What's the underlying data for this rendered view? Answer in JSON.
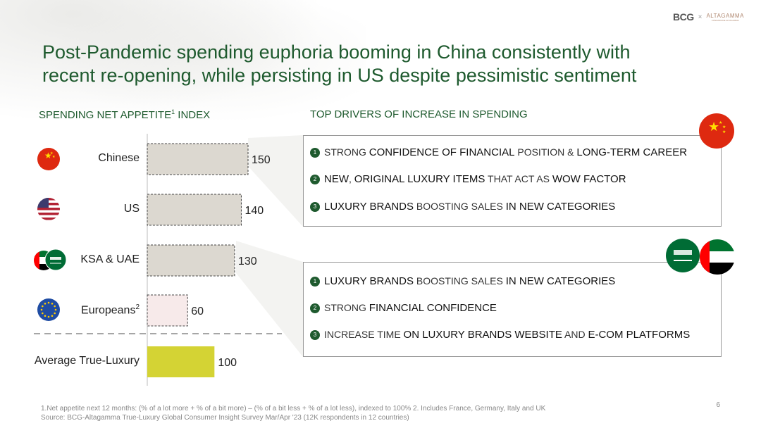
{
  "header": {
    "logo_bcg": "BCG",
    "logo_sep": "×",
    "logo_altagamma": "ALTAGAMMA",
    "logo_altagamma_sub": "FONDAZIONE ALTAGAMMA"
  },
  "title_line1": "Post-Pandemic spending euphoria booming in China consistently with",
  "title_line2": "recent re-opening, while persisting in US despite pessimistic sentiment",
  "left_heading": {
    "pre": "SPENDING NET APPETITE",
    "sup": "1",
    "post": " INDEX"
  },
  "right_heading": "TOP DRIVERS OF INCREASE IN SPENDING",
  "chart_data": {
    "type": "bar",
    "orientation": "horizontal",
    "categories": [
      "Chinese",
      "US",
      "KSA & UAE",
      "Europeans",
      "Average True-Luxury"
    ],
    "category_sups": [
      "",
      "",
      "",
      "2",
      ""
    ],
    "values": [
      150,
      140,
      130,
      60,
      100
    ],
    "value_labels": [
      "150",
      "140",
      "130",
      "60",
      "100"
    ],
    "xlim": [
      0,
      150
    ],
    "bar_colors": [
      "#dcd8d0",
      "#dcd8d0",
      "#dcd8d0",
      "#f7eaea",
      "#d4d334"
    ],
    "title": "",
    "xlabel": "",
    "ylabel": ""
  },
  "flags": [
    "china-flag-icon",
    "usa-flag-icon",
    "ksa-uae-flags-icon",
    "eu-flag-icon"
  ],
  "drivers_top": [
    {
      "n": "1",
      "parts": [
        {
          "t": "STRONG ",
          "b": false
        },
        {
          "t": "CONFIDENCE OF FINANCIAL",
          "b": true
        },
        {
          "t": " POSITION & ",
          "b": false
        },
        {
          "t": "LONG-TERM CAREER",
          "b": true
        }
      ]
    },
    {
      "n": "2",
      "parts": [
        {
          "t": "NEW",
          "b": true
        },
        {
          "t": ", ",
          "b": false
        },
        {
          "t": "ORIGINAL LUXURY ITEMS",
          "b": true
        },
        {
          "t": " THAT ACT AS ",
          "b": false
        },
        {
          "t": "WOW FACTOR",
          "b": true
        }
      ]
    },
    {
      "n": "3",
      "parts": [
        {
          "t": "LUXURY BRANDS",
          "b": true
        },
        {
          "t": " BOOSTING SALES ",
          "b": false
        },
        {
          "t": "IN NEW CATEGORIES",
          "b": true
        }
      ]
    }
  ],
  "drivers_bottom": [
    {
      "n": "1",
      "parts": [
        {
          "t": "LUXURY BRANDS",
          "b": true
        },
        {
          "t": " BOOSTING SALES ",
          "b": false
        },
        {
          "t": "IN NEW CATEGORIES",
          "b": true
        }
      ]
    },
    {
      "n": "2",
      "parts": [
        {
          "t": "STRONG ",
          "b": false
        },
        {
          "t": "FINANCIAL CONFIDENCE",
          "b": true
        }
      ]
    },
    {
      "n": "3",
      "parts": [
        {
          "t": "INCREASE TIME ",
          "b": false
        },
        {
          "t": "ON LUXURY BRANDS WEBSITE",
          "b": true
        },
        {
          "t": " AND ",
          "b": false
        },
        {
          "t": "E-COM PLATFORMS",
          "b": true
        }
      ]
    }
  ],
  "footnote_line1": "1.Net appetite next 12 months: (% of a lot more + % of a bit more) – (% of a bit less + % of a lot less), indexed to 100%     2. Includes France, Germany, Italy and UK",
  "footnote_line2": "Source: BCG-Altagamma True-Luxury Global Consumer Insight Survey Mar/Apr '23 (12K respondents in 12 countries)",
  "page_number": "6",
  "colors": {
    "accent_green": "#1e5a2e",
    "bar_neutral": "#dcd8d0",
    "bar_eu": "#f7eaea",
    "bar_avg": "#d4d334"
  }
}
